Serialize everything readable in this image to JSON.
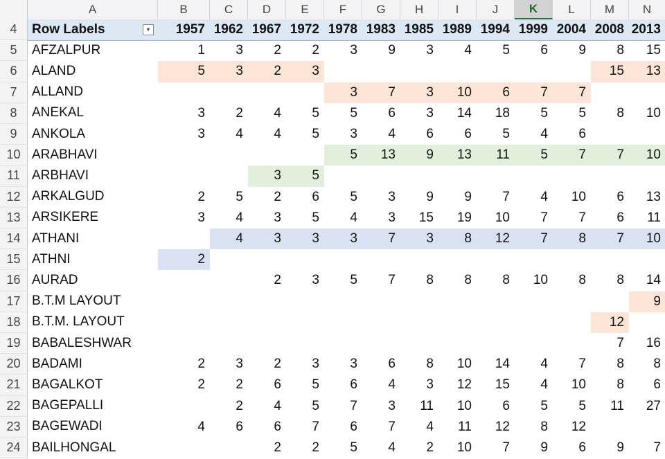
{
  "columns": [
    "A",
    "B",
    "C",
    "D",
    "E",
    "F",
    "G",
    "H",
    "I",
    "J",
    "K",
    "L",
    "M",
    "N"
  ],
  "active_column": "K",
  "colors": {
    "salmon": "#fce4d6",
    "green": "#e2efda",
    "blue": "#d9e1f2",
    "pivot_header": "#dde8f5"
  },
  "pivot_header": {
    "row_number": "4",
    "label": "Row Labels",
    "years": [
      "1957",
      "1962",
      "1967",
      "1972",
      "1978",
      "1983",
      "1985",
      "1989",
      "1994",
      "1999",
      "2004",
      "2008",
      "2013"
    ]
  },
  "rows": [
    {
      "row_number": "5",
      "label": "AFZALPUR",
      "values": [
        "1",
        "3",
        "2",
        "2",
        "3",
        "9",
        "3",
        "4",
        "5",
        "6",
        "9",
        "8",
        "15"
      ],
      "highlights": []
    },
    {
      "row_number": "6",
      "label": "ALAND",
      "values": [
        "5",
        "3",
        "2",
        "3",
        "",
        "",
        "",
        "",
        "",
        "",
        "",
        "15",
        "13"
      ],
      "highlights": [
        {
          "from": 0,
          "to": 3,
          "color": "salmon"
        },
        {
          "from": 11,
          "to": 12,
          "color": "salmon"
        }
      ]
    },
    {
      "row_number": "7",
      "label": "ALLAND",
      "values": [
        "",
        "",
        "",
        "",
        "3",
        "7",
        "3",
        "10",
        "6",
        "7",
        "7",
        "",
        ""
      ],
      "highlights": [
        {
          "from": 4,
          "to": 10,
          "color": "salmon"
        }
      ]
    },
    {
      "row_number": "8",
      "label": "ANEKAL",
      "values": [
        "3",
        "2",
        "4",
        "5",
        "5",
        "6",
        "3",
        "14",
        "18",
        "5",
        "5",
        "8",
        "10"
      ],
      "highlights": []
    },
    {
      "row_number": "9",
      "label": "ANKOLA",
      "values": [
        "3",
        "4",
        "4",
        "5",
        "3",
        "4",
        "6",
        "6",
        "5",
        "4",
        "6",
        "",
        ""
      ],
      "highlights": []
    },
    {
      "row_number": "10",
      "label": "ARABHAVI",
      "values": [
        "",
        "",
        "",
        "",
        "5",
        "13",
        "9",
        "13",
        "11",
        "5",
        "7",
        "7",
        "10"
      ],
      "highlights": [
        {
          "from": 4,
          "to": 12,
          "color": "green"
        }
      ]
    },
    {
      "row_number": "11",
      "label": "ARBHAVI",
      "values": [
        "",
        "",
        "3",
        "5",
        "",
        "",
        "",
        "",
        "",
        "",
        "",
        "",
        ""
      ],
      "highlights": [
        {
          "from": 2,
          "to": 3,
          "color": "green"
        }
      ]
    },
    {
      "row_number": "12",
      "label": "ARKALGUD",
      "values": [
        "2",
        "5",
        "2",
        "6",
        "5",
        "3",
        "9",
        "9",
        "7",
        "4",
        "10",
        "6",
        "13"
      ],
      "highlights": []
    },
    {
      "row_number": "13",
      "label": "ARSIKERE",
      "values": [
        "3",
        "4",
        "3",
        "5",
        "4",
        "3",
        "15",
        "19",
        "10",
        "7",
        "7",
        "6",
        "11"
      ],
      "highlights": []
    },
    {
      "row_number": "14",
      "label": "ATHANI",
      "values": [
        "",
        "4",
        "3",
        "3",
        "3",
        "7",
        "3",
        "8",
        "12",
        "7",
        "8",
        "7",
        "10"
      ],
      "highlights": [
        {
          "from": 1,
          "to": 12,
          "color": "blue"
        }
      ]
    },
    {
      "row_number": "15",
      "label": "ATHNI",
      "values": [
        "2",
        "",
        "",
        "",
        "",
        "",
        "",
        "",
        "",
        "",
        "",
        "",
        ""
      ],
      "highlights": [
        {
          "from": 0,
          "to": 0,
          "color": "blue"
        }
      ]
    },
    {
      "row_number": "16",
      "label": "AURAD",
      "values": [
        "",
        "",
        "2",
        "3",
        "5",
        "7",
        "8",
        "8",
        "8",
        "10",
        "8",
        "8",
        "14"
      ],
      "highlights": []
    },
    {
      "row_number": "17",
      "label": "B.T.M LAYOUT",
      "values": [
        "",
        "",
        "",
        "",
        "",
        "",
        "",
        "",
        "",
        "",
        "",
        "",
        "9"
      ],
      "highlights": [
        {
          "from": 12,
          "to": 12,
          "color": "salmon"
        }
      ]
    },
    {
      "row_number": "18",
      "label": "B.T.M. LAYOUT",
      "values": [
        "",
        "",
        "",
        "",
        "",
        "",
        "",
        "",
        "",
        "",
        "",
        "12",
        ""
      ],
      "highlights": [
        {
          "from": 11,
          "to": 11,
          "color": "salmon"
        }
      ]
    },
    {
      "row_number": "19",
      "label": "BABALESHWAR",
      "values": [
        "",
        "",
        "",
        "",
        "",
        "",
        "",
        "",
        "",
        "",
        "",
        "7",
        "16"
      ],
      "highlights": []
    },
    {
      "row_number": "20",
      "label": "BADAMI",
      "values": [
        "2",
        "3",
        "2",
        "3",
        "3",
        "6",
        "8",
        "10",
        "14",
        "4",
        "7",
        "8",
        "8"
      ],
      "highlights": []
    },
    {
      "row_number": "21",
      "label": "BAGALKOT",
      "values": [
        "2",
        "2",
        "6",
        "5",
        "6",
        "4",
        "3",
        "12",
        "15",
        "4",
        "10",
        "8",
        "6"
      ],
      "highlights": []
    },
    {
      "row_number": "22",
      "label": "BAGEPALLI",
      "values": [
        "",
        "2",
        "4",
        "5",
        "7",
        "3",
        "11",
        "10",
        "6",
        "5",
        "5",
        "11",
        "27"
      ],
      "highlights": []
    },
    {
      "row_number": "23",
      "label": "BAGEWADI",
      "values": [
        "4",
        "6",
        "6",
        "7",
        "6",
        "7",
        "4",
        "11",
        "12",
        "8",
        "12",
        "",
        ""
      ],
      "highlights": []
    },
    {
      "row_number": "24",
      "label": "BAILHONGAL",
      "values": [
        "",
        "",
        "2",
        "2",
        "5",
        "4",
        "2",
        "10",
        "7",
        "9",
        "6",
        "9",
        "7"
      ],
      "highlights": []
    }
  ]
}
